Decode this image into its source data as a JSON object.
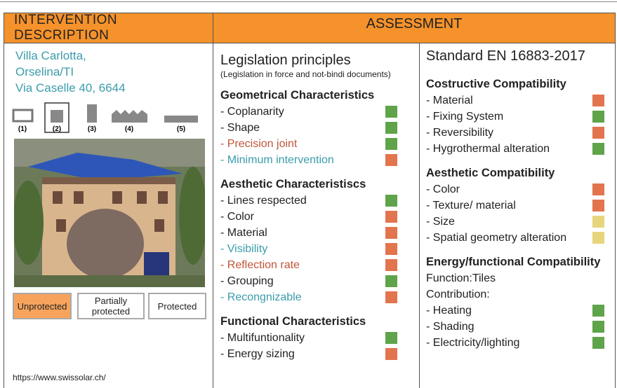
{
  "header": {
    "left_title": "INTERVENTION DESCRIPTION",
    "right_title": "ASSESSMENT"
  },
  "intervention": {
    "address": [
      "Villa Carlotta,",
      "Orselina/TI",
      "Via Caselle 40, 6644"
    ],
    "building_types": [
      "(1)",
      "(2)",
      "(3)",
      "(4)",
      "(5)"
    ],
    "protection_levels": [
      {
        "label": "Unprotected",
        "color": "#f7a35c"
      },
      {
        "label": "Partially protected"
      },
      {
        "label": "Protected"
      }
    ],
    "source": "https://www.swissolar.ch/"
  },
  "legislation": {
    "title": "Legislation principles",
    "subtitle": "(Legislation in force and not-bindi documents)",
    "sections": [
      {
        "heading": "Geometrical Characteristics",
        "items": [
          {
            "text": "- Coplanarity",
            "indicator": "#5fa34a"
          },
          {
            "text": "- Shape",
            "indicator": "#5fa34a"
          },
          {
            "text": "- Precision joint",
            "text_color": "#c0553a",
            "indicator": "#5fa34a"
          },
          {
            "text": "- Minimum intervention",
            "text_color": "#3b9cab",
            "indicator": "#e2744e"
          }
        ]
      },
      {
        "heading": "Aesthetic Characteristiscs",
        "items": [
          {
            "text": "- Lines respected",
            "indicator": "#5fa34a"
          },
          {
            "text": "- Color",
            "indicator": "#e2744e"
          },
          {
            "text": "- Material",
            "indicator": "#e2744e"
          },
          {
            "text": "- Visibility",
            "text_color": "#3b9cab",
            "indicator": "#e2744e"
          },
          {
            "text": "- Reflection rate",
            "text_color": "#c0553a",
            "indicator": "#e2744e"
          },
          {
            "text": "- Grouping",
            "indicator": "#5fa34a"
          },
          {
            "text": "- Recongnizable",
            "text_color": "#3b9cab",
            "indicator": "#e2744e"
          }
        ]
      },
      {
        "heading": "Functional Characteristics",
        "items": [
          {
            "text": "- Multifuntionality",
            "indicator": "#5fa34a"
          },
          {
            "text": "- Energy sizing",
            "indicator": "#e2744e"
          }
        ]
      }
    ]
  },
  "standard": {
    "title": "Standard  EN 16883-2017",
    "sections": [
      {
        "heading": "Costructive Compatibility",
        "items": [
          {
            "text": "- Material",
            "indicator": "#e2744e"
          },
          {
            "text": "- Fixing System",
            "indicator": "#5fa34a"
          },
          {
            "text": "- Reversibility",
            "indicator": "#e2744e"
          },
          {
            "text": "- Hygrothermal alteration",
            "indicator": "#5fa34a"
          }
        ]
      },
      {
        "heading": "Aesthetic Compatibility",
        "items": [
          {
            "text": "- Color",
            "indicator": "#e2744e"
          },
          {
            "text": "- Texture/ material",
            "indicator": "#e2744e"
          },
          {
            "text": "- Size",
            "indicator": "#e6d57c"
          },
          {
            "text": "- Spatial geometry alteration",
            "indicator": "#e6d57c"
          }
        ]
      },
      {
        "heading": "Energy/functional Compatibility",
        "notes": [
          "Function:Tiles",
          "Contribution:"
        ],
        "items": [
          {
            "text": "- Heating",
            "indicator": "#5fa34a"
          },
          {
            "text": "- Shading",
            "indicator": "#5fa34a"
          },
          {
            "text": "- Electricity/lighting",
            "indicator": "#5fa34a"
          }
        ]
      }
    ]
  }
}
